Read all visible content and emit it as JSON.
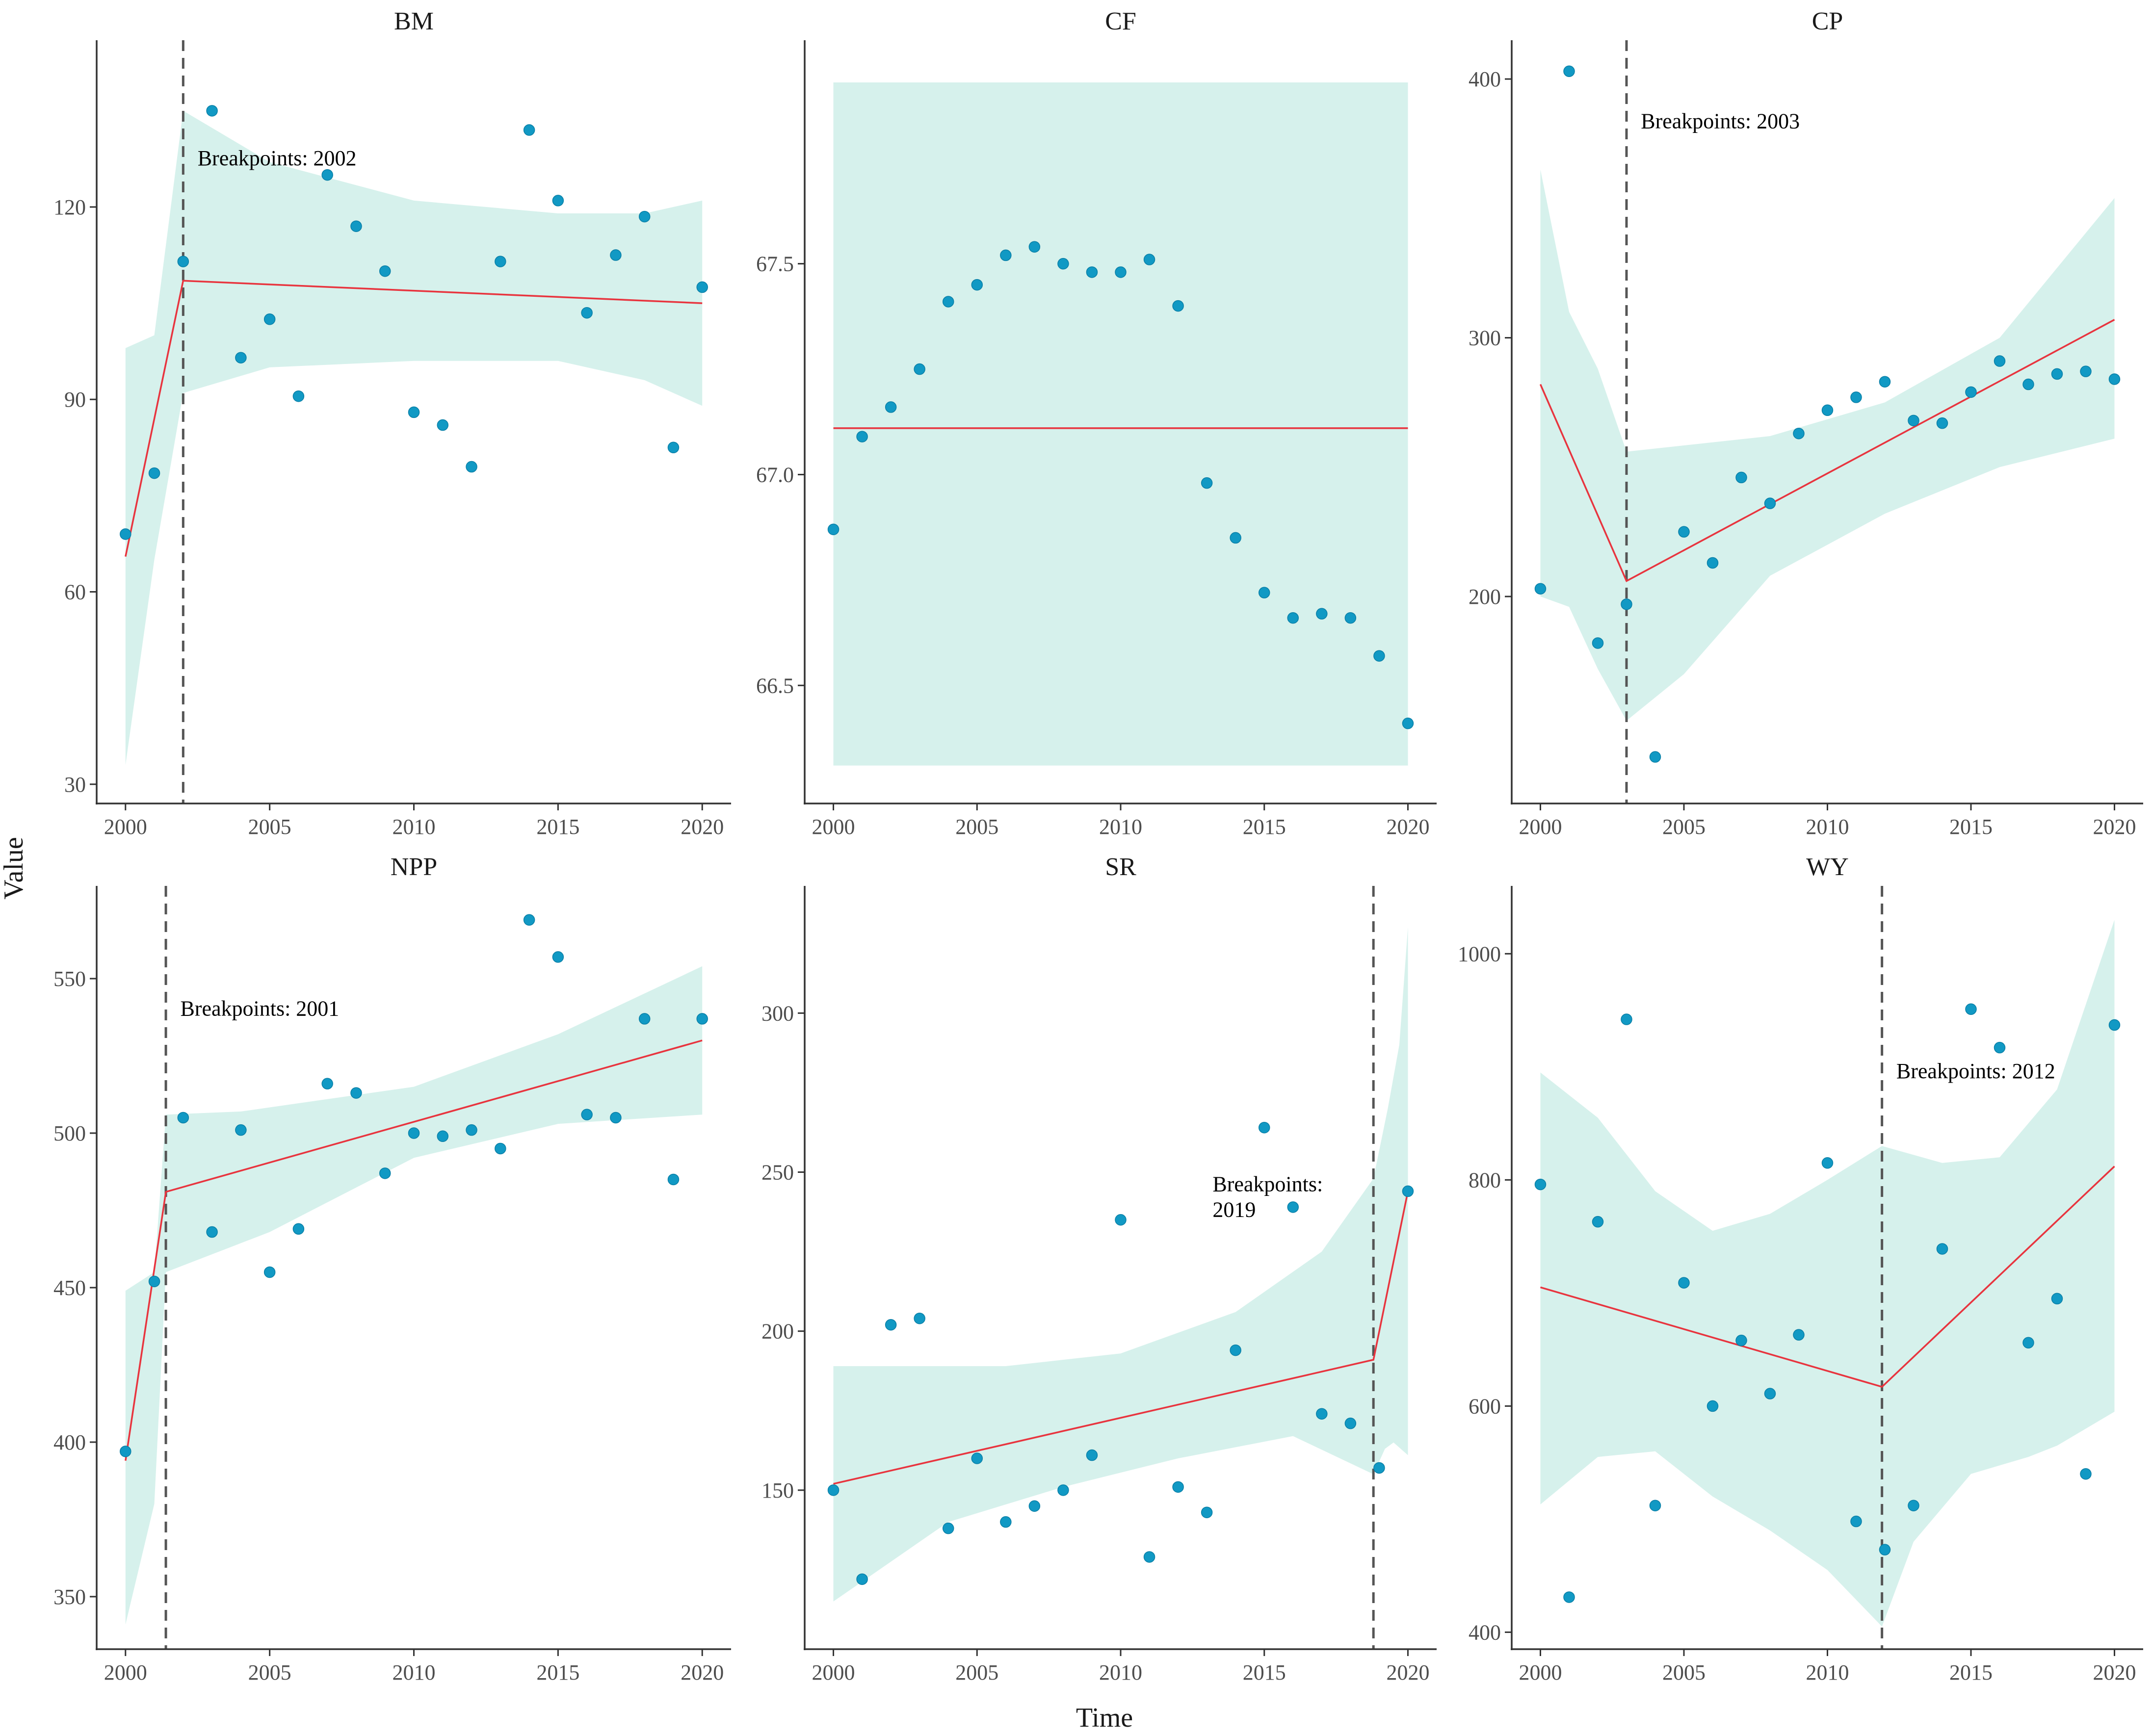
{
  "figure": {
    "ylabel": "Value",
    "xlabel": "Time"
  },
  "colors": {
    "point": "#1199C4",
    "point_edge": "#0a7fa6",
    "fit_line": "#E8343E",
    "ci_band": "#D6F1EC",
    "breakpoint_line": "#555555",
    "axis": "#333333"
  },
  "chart_data": [
    {
      "type": "scatter",
      "title": "BM",
      "x": [
        2000,
        2001,
        2002,
        2003,
        2004,
        2005,
        2006,
        2007,
        2008,
        2009,
        2010,
        2011,
        2012,
        2013,
        2014,
        2015,
        2016,
        2017,
        2018,
        2019,
        2020
      ],
      "y": [
        69,
        78.5,
        111.5,
        135,
        96.5,
        102.5,
        90.5,
        125,
        117,
        110,
        88,
        86,
        79.5,
        111.5,
        132,
        121,
        103.5,
        112.5,
        118.5,
        82.5,
        107.5
      ],
      "xlim": [
        1999,
        2021
      ],
      "ylim": [
        27,
        146
      ],
      "xticks": [
        2000,
        2005,
        2010,
        2015,
        2020
      ],
      "xtick_labels": [
        "2000",
        "2005",
        "2010",
        "2015",
        "2020"
      ],
      "yticks": [
        30,
        60,
        90,
        120
      ],
      "ytick_labels": [
        "30",
        "60",
        "90",
        "120"
      ],
      "breakpoint": 2002,
      "breakpoint_label": [
        "Breakpoints: 2002"
      ],
      "label_anchor": [
        2002.5,
        126.5
      ],
      "fit": [
        [
          2000,
          65.5
        ],
        [
          2002,
          108.5
        ],
        [
          2020,
          105
        ]
      ],
      "ci_upper": [
        [
          2000,
          98
        ],
        [
          2001,
          100
        ],
        [
          2002,
          135
        ],
        [
          2005,
          127
        ],
        [
          2010,
          121
        ],
        [
          2015,
          119
        ],
        [
          2018,
          119
        ],
        [
          2020,
          121
        ]
      ],
      "ci_lower": [
        [
          2000,
          33
        ],
        [
          2001,
          65
        ],
        [
          2002,
          91
        ],
        [
          2005,
          95
        ],
        [
          2010,
          96
        ],
        [
          2015,
          96
        ],
        [
          2018,
          93
        ],
        [
          2020,
          89
        ]
      ]
    },
    {
      "type": "scatter",
      "title": "CF",
      "x": [
        2000,
        2001,
        2002,
        2003,
        2004,
        2005,
        2006,
        2007,
        2008,
        2009,
        2010,
        2011,
        2012,
        2013,
        2014,
        2015,
        2016,
        2017,
        2018,
        2019,
        2020
      ],
      "y": [
        66.87,
        67.09,
        67.16,
        67.25,
        67.41,
        67.45,
        67.52,
        67.54,
        67.5,
        67.48,
        67.48,
        67.51,
        67.4,
        66.98,
        66.85,
        66.72,
        66.66,
        66.67,
        66.66,
        66.57,
        66.41
      ],
      "xlim": [
        1999,
        2021
      ],
      "ylim": [
        66.22,
        68.03
      ],
      "xticks": [
        2000,
        2005,
        2010,
        2015,
        2020
      ],
      "xtick_labels": [
        "2000",
        "2005",
        "2010",
        "2015",
        "2020"
      ],
      "yticks": [
        66.5,
        67.0,
        67.5
      ],
      "ytick_labels": [
        "66.5",
        "67.0",
        "67.5"
      ],
      "fit": [
        [
          2000,
          67.11
        ],
        [
          2020,
          67.11
        ]
      ],
      "ci_upper": [
        [
          2000,
          67.93
        ],
        [
          2020,
          67.93
        ]
      ],
      "ci_lower": [
        [
          2000,
          66.31
        ],
        [
          2020,
          66.31
        ]
      ]
    },
    {
      "type": "scatter",
      "title": "CP",
      "x": [
        2000,
        2001,
        2002,
        2003,
        2004,
        2005,
        2006,
        2007,
        2008,
        2009,
        2010,
        2011,
        2012,
        2013,
        2014,
        2015,
        2016,
        2017,
        2018,
        2019,
        2020
      ],
      "y": [
        203,
        403,
        182,
        197,
        138,
        225,
        213,
        246,
        236,
        263,
        272,
        277,
        283,
        268,
        267,
        279,
        291,
        282,
        286,
        287,
        284
      ],
      "xlim": [
        1999,
        2021
      ],
      "ylim": [
        120,
        415
      ],
      "xticks": [
        2000,
        2005,
        2010,
        2015,
        2020
      ],
      "xtick_labels": [
        "2000",
        "2005",
        "2010",
        "2015",
        "2020"
      ],
      "yticks": [
        200,
        300,
        400
      ],
      "ytick_labels": [
        "200",
        "300",
        "400"
      ],
      "breakpoint": 2003,
      "breakpoint_label": [
        "Breakpoints: 2003"
      ],
      "label_anchor": [
        2003.5,
        381
      ],
      "fit": [
        [
          2000,
          282
        ],
        [
          2003,
          206
        ],
        [
          2020,
          307
        ]
      ],
      "ci_upper": [
        [
          2000,
          365
        ],
        [
          2001,
          310
        ],
        [
          2002,
          288
        ],
        [
          2003,
          256
        ],
        [
          2008,
          262
        ],
        [
          2012,
          275
        ],
        [
          2016,
          300
        ],
        [
          2020,
          354
        ]
      ],
      "ci_lower": [
        [
          2000,
          200
        ],
        [
          2001,
          196
        ],
        [
          2002,
          172
        ],
        [
          2003,
          152
        ],
        [
          2005,
          170
        ],
        [
          2008,
          208
        ],
        [
          2012,
          232
        ],
        [
          2016,
          250
        ],
        [
          2020,
          261
        ]
      ]
    },
    {
      "type": "scatter",
      "title": "NPP",
      "x": [
        2000,
        2001,
        2002,
        2003,
        2004,
        2005,
        2006,
        2007,
        2008,
        2009,
        2010,
        2011,
        2012,
        2013,
        2014,
        2015,
        2016,
        2017,
        2018,
        2019,
        2020
      ],
      "y": [
        397,
        452,
        505,
        468,
        501,
        455,
        469,
        516,
        513,
        487,
        500,
        499,
        501,
        495,
        569,
        557,
        506,
        505,
        537,
        485,
        537
      ],
      "xlim": [
        1999,
        2021
      ],
      "ylim": [
        333,
        580
      ],
      "xticks": [
        2000,
        2005,
        2010,
        2015,
        2020
      ],
      "xtick_labels": [
        "2000",
        "2005",
        "2010",
        "2015",
        "2020"
      ],
      "yticks": [
        350,
        400,
        450,
        500,
        550
      ],
      "ytick_labels": [
        "350",
        "400",
        "450",
        "500",
        "550"
      ],
      "breakpoint": 2001.4,
      "breakpoint_label": [
        "Breakpoints: 2001"
      ],
      "label_anchor": [
        2001.9,
        538
      ],
      "fit": [
        [
          2000,
          394
        ],
        [
          2001.4,
          481
        ],
        [
          2020,
          530
        ]
      ],
      "ci_upper": [
        [
          2000,
          449
        ],
        [
          2001,
          455
        ],
        [
          2001.4,
          506
        ],
        [
          2004,
          507
        ],
        [
          2010,
          515
        ],
        [
          2015,
          532
        ],
        [
          2020,
          554
        ]
      ],
      "ci_lower": [
        [
          2000,
          341
        ],
        [
          2001,
          380
        ],
        [
          2001.4,
          455
        ],
        [
          2005,
          468
        ],
        [
          2010,
          492
        ],
        [
          2015,
          503
        ],
        [
          2020,
          506
        ]
      ]
    },
    {
      "type": "scatter",
      "title": "SR",
      "x": [
        2000,
        2001,
        2002,
        2003,
        2004,
        2005,
        2006,
        2007,
        2008,
        2009,
        2010,
        2011,
        2012,
        2013,
        2014,
        2015,
        2016,
        2017,
        2018,
        2019,
        2020
      ],
      "y": [
        150,
        122,
        202,
        204,
        138,
        160,
        140,
        145,
        150,
        161,
        235,
        129,
        151,
        143,
        194,
        264,
        239,
        174,
        171,
        157,
        244
      ],
      "xlim": [
        1999,
        2021
      ],
      "ylim": [
        100,
        340
      ],
      "xticks": [
        2000,
        2005,
        2010,
        2015,
        2020
      ],
      "xtick_labels": [
        "2000",
        "2005",
        "2010",
        "2015",
        "2020"
      ],
      "yticks": [
        150,
        200,
        250,
        300
      ],
      "ytick_labels": [
        "150",
        "200",
        "250",
        "300"
      ],
      "breakpoint": 2018.8,
      "breakpoint_label": [
        "Breakpoints:",
        "2019"
      ],
      "label_anchor": [
        2013.2,
        244
      ],
      "fit": [
        [
          2000,
          152
        ],
        [
          2018.8,
          191
        ],
        [
          2020,
          244
        ]
      ],
      "ci_upper": [
        [
          2000,
          189
        ],
        [
          2006,
          189
        ],
        [
          2010,
          193
        ],
        [
          2014,
          206
        ],
        [
          2017,
          225
        ],
        [
          2018.8,
          248
        ],
        [
          2019.3,
          270
        ],
        [
          2019.7,
          290
        ],
        [
          2020,
          327
        ]
      ],
      "ci_lower": [
        [
          2000,
          115
        ],
        [
          2004,
          140
        ],
        [
          2008,
          151
        ],
        [
          2012,
          160
        ],
        [
          2016,
          167
        ],
        [
          2018.8,
          155
        ],
        [
          2019.2,
          163
        ],
        [
          2019.5,
          165
        ],
        [
          2020,
          161
        ]
      ]
    },
    {
      "type": "scatter",
      "title": "WY",
      "x": [
        2000,
        2001,
        2002,
        2003,
        2004,
        2005,
        2006,
        2007,
        2008,
        2009,
        2010,
        2011,
        2012,
        2013,
        2014,
        2015,
        2016,
        2017,
        2018,
        2019,
        2020
      ],
      "y": [
        796,
        431,
        763,
        942,
        512,
        709,
        600,
        658,
        611,
        663,
        815,
        498,
        473,
        512,
        739,
        951,
        917,
        656,
        695,
        540,
        937
      ],
      "xlim": [
        1999,
        2021
      ],
      "ylim": [
        385,
        1060
      ],
      "xticks": [
        2000,
        2005,
        2010,
        2015,
        2020
      ],
      "xtick_labels": [
        "2000",
        "2005",
        "2010",
        "2015",
        "2020"
      ],
      "yticks": [
        400,
        600,
        800,
        1000
      ],
      "ytick_labels": [
        "400",
        "600",
        "800",
        "1000"
      ],
      "breakpoint": 2011.9,
      "breakpoint_label": [
        "Breakpoints: 2012"
      ],
      "label_anchor": [
        2012.4,
        890
      ],
      "fit": [
        [
          2000,
          705
        ],
        [
          2011.9,
          617
        ],
        [
          2020,
          812
        ]
      ],
      "ci_upper": [
        [
          2000,
          895
        ],
        [
          2002,
          855
        ],
        [
          2004,
          790
        ],
        [
          2006,
          755
        ],
        [
          2008,
          770
        ],
        [
          2010,
          800
        ],
        [
          2011.9,
          830
        ],
        [
          2014,
          815
        ],
        [
          2016,
          820
        ],
        [
          2018,
          880
        ],
        [
          2020,
          1030
        ]
      ],
      "ci_lower": [
        [
          2000,
          513
        ],
        [
          2002,
          555
        ],
        [
          2004,
          560
        ],
        [
          2006,
          520
        ],
        [
          2008,
          490
        ],
        [
          2010,
          455
        ],
        [
          2011.9,
          405
        ],
        [
          2013,
          480
        ],
        [
          2015,
          540
        ],
        [
          2017,
          555
        ],
        [
          2018,
          565
        ],
        [
          2020,
          595
        ]
      ]
    }
  ]
}
